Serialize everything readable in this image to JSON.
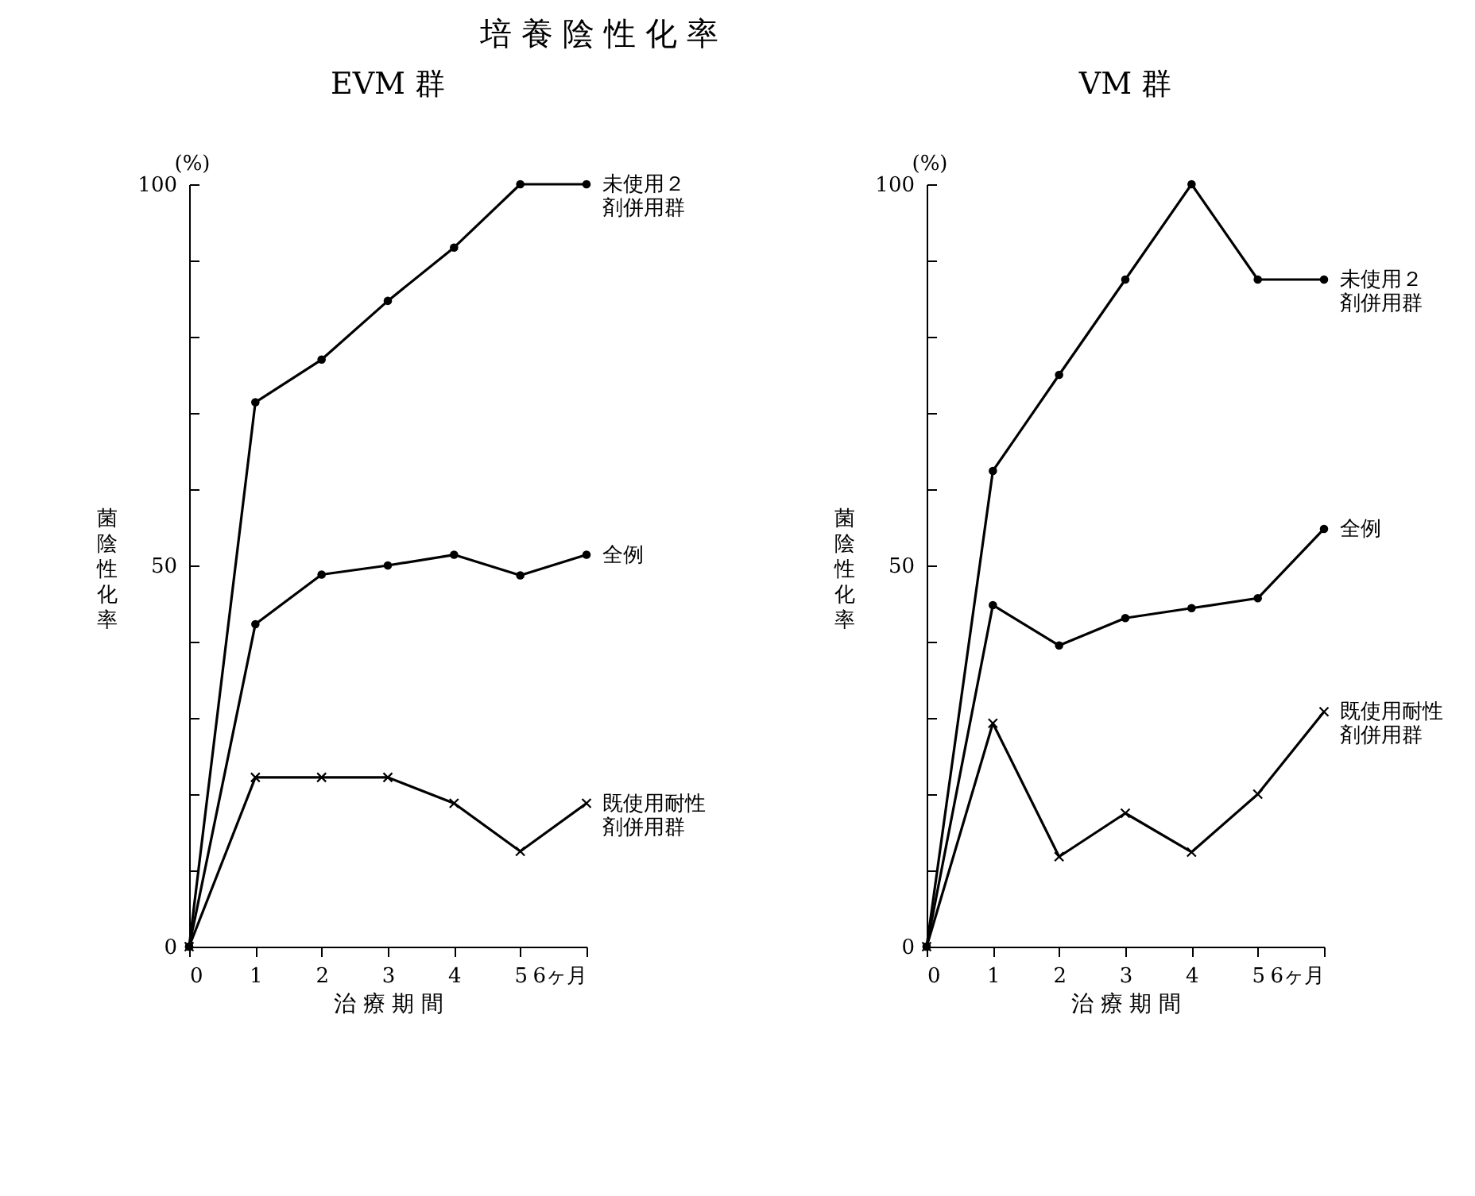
{
  "chart_data": [
    {
      "type": "line",
      "title": "培養陰性化率",
      "subtitle": "EVM 群",
      "xlabel": "治 療 期 間",
      "ylabel": "菌陰性化率",
      "annotations": [
        "(%)"
      ],
      "x": [
        0,
        1,
        2,
        3,
        4,
        5,
        6
      ],
      "xlim": [
        0,
        6
      ],
      "xticks": [
        0,
        1,
        2,
        3,
        4,
        5,
        {
          "value": 6,
          "label": "6ヶ月"
        }
      ],
      "ylim": [
        0,
        100
      ],
      "yticks": [
        0,
        {
          "value": 10,
          "label": null
        },
        {
          "value": 20,
          "label": null
        },
        {
          "value": 30,
          "label": null
        },
        {
          "value": 40,
          "label": null
        },
        50,
        {
          "value": 60,
          "label": null
        },
        {
          "value": 70,
          "label": null
        },
        {
          "value": 80,
          "label": null
        },
        {
          "value": 90,
          "label": null
        },
        100
      ],
      "grid": false,
      "line_style": "solid",
      "series": [
        {
          "name": "未使用２剤併用群",
          "color": "#000000",
          "marker": "circle",
          "values": [
            0,
            71.4,
            77.0,
            84.7,
            91.7,
            100,
            100
          ]
        },
        {
          "name": "全例",
          "color": "#000000",
          "marker": "circle",
          "values": [
            0,
            42.3,
            48.8,
            50.0,
            51.4,
            48.7,
            51.4
          ]
        },
        {
          "name": "既使用耐性剤併用群",
          "color": "#000000",
          "marker": "cross",
          "values": [
            0,
            22.2,
            22.2,
            22.2,
            18.8,
            12.5,
            18.8
          ]
        }
      ]
    },
    {
      "type": "line",
      "subtitle": "VM 群",
      "xlabel": "治 療 期 間",
      "ylabel": "菌陰性化率",
      "annotations": [
        "(%)"
      ],
      "x": [
        0,
        1,
        2,
        3,
        4,
        5,
        6
      ],
      "xlim": [
        0,
        6
      ],
      "xticks": [
        0,
        1,
        2,
        3,
        4,
        5,
        {
          "value": 6,
          "label": "6ヶ月"
        }
      ],
      "ylim": [
        0,
        100
      ],
      "yticks": [
        0,
        {
          "value": 10,
          "label": null
        },
        {
          "value": 20,
          "label": null
        },
        {
          "value": 30,
          "label": null
        },
        {
          "value": 40,
          "label": null
        },
        50,
        {
          "value": 60,
          "label": null
        },
        {
          "value": 70,
          "label": null
        },
        {
          "value": 80,
          "label": null
        },
        {
          "value": 90,
          "label": null
        },
        100
      ],
      "grid": false,
      "line_style": "solid",
      "series": [
        {
          "name": "未使用２剤併用群",
          "color": "#000000",
          "marker": "circle",
          "values": [
            0,
            62.4,
            75.0,
            87.5,
            100,
            87.5,
            87.5
          ]
        },
        {
          "name": "全例",
          "color": "#000000",
          "marker": "circle",
          "values": [
            0,
            44.8,
            39.5,
            43.1,
            44.4,
            45.7,
            54.8
          ]
        },
        {
          "name": "既使用耐性剤併用群",
          "color": "#000000",
          "marker": "cross",
          "values": [
            0,
            29.3,
            11.8,
            17.5,
            12.4,
            20.0,
            30.8
          ]
        }
      ]
    }
  ]
}
